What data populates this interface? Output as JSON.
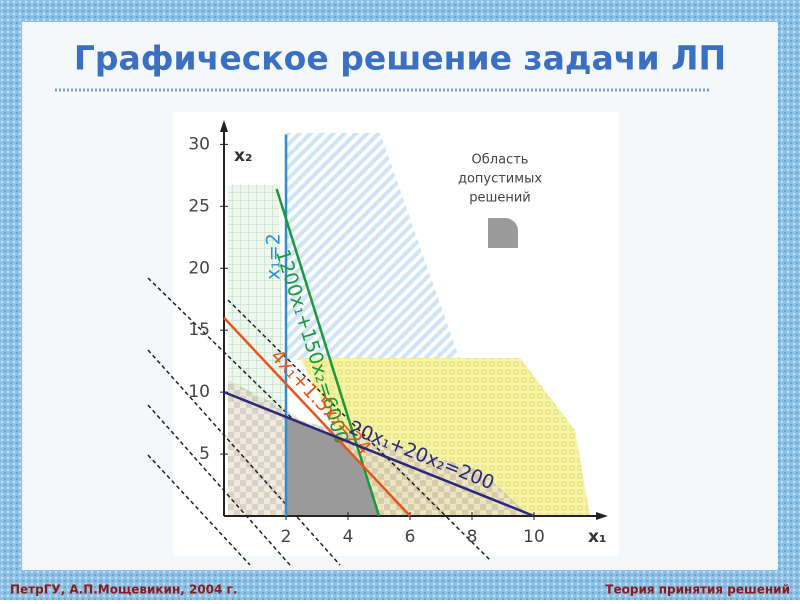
{
  "header": {
    "title": "Графическое решение задачи ЛП"
  },
  "footer": {
    "left": "ПетрГУ, А.П.Мощевикин, 2004 г.",
    "right": "Теория принятия решений"
  },
  "chart_data": {
    "type": "line",
    "x_label": "x₁",
    "y_label": "x₂",
    "xlim": [
      0,
      12
    ],
    "ylim": [
      0,
      31
    ],
    "xticks": [
      2,
      4,
      6,
      8,
      10
    ],
    "yticks": [
      5,
      10,
      15,
      20,
      25,
      30
    ],
    "legend_text": [
      "Область",
      "допустимых",
      "решений"
    ],
    "region_color": "#9a9a9a",
    "feasible_region": {
      "x": [
        2,
        2,
        3.6,
        4.5,
        5
      ],
      "values": [
        0,
        8,
        6.4,
        4,
        0
      ]
    },
    "series": [
      {
        "name": "x₁=2",
        "color": "#2a8fd6",
        "x": [
          2,
          2
        ],
        "values": [
          0,
          30.8
        ]
      },
      {
        "name": "1200x₁+150x₂=6000",
        "color": "#1a9a3a",
        "x": [
          1.7,
          5
        ],
        "values": [
          26.4,
          0
        ]
      },
      {
        "name": "4x₁+1.5x₂=24",
        "color": "#e8541c",
        "x": [
          0,
          6
        ],
        "values": [
          16,
          0
        ]
      },
      {
        "name": "20x₁+20x₂=200",
        "color": "#2a2a7a",
        "x": [
          0,
          10
        ],
        "values": [
          10,
          0
        ]
      }
    ]
  }
}
